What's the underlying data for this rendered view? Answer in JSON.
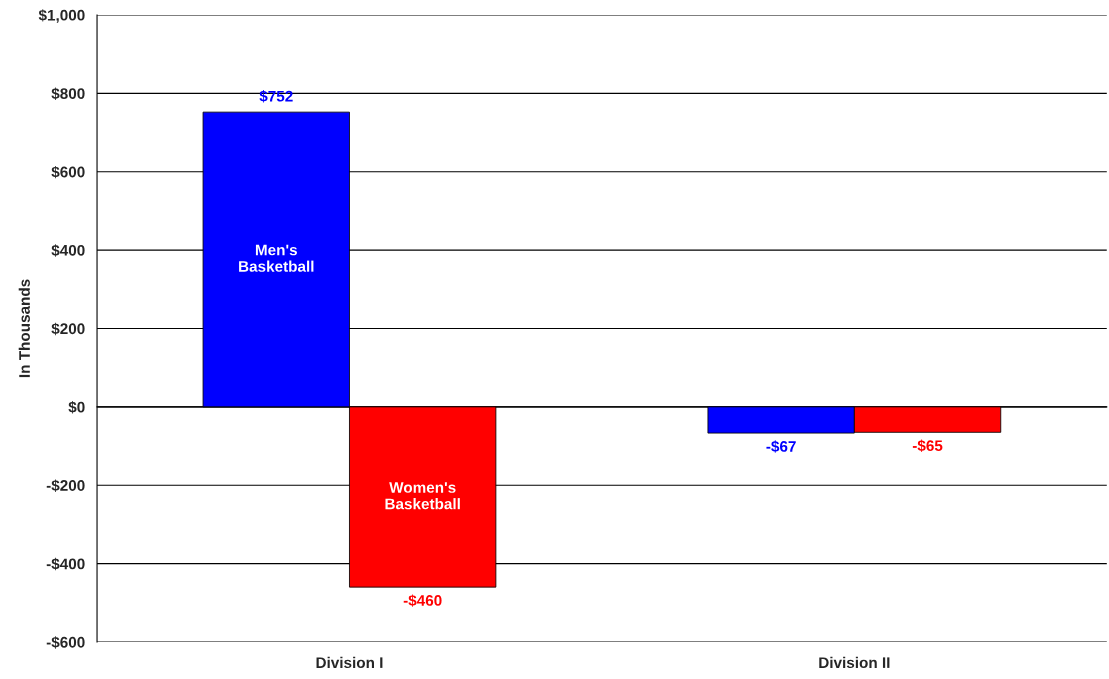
{
  "chart_data": {
    "type": "bar",
    "ylabel": "In Thousands",
    "categories": [
      "Division I",
      "Division II"
    ],
    "series": [
      {
        "name": "Men's Basketball",
        "color": "#0000ff",
        "values": [
          752,
          -67
        ],
        "value_labels": [
          "$752",
          "-$67"
        ]
      },
      {
        "name": "Women's Basketball",
        "color": "#ff0000",
        "values": [
          -460,
          -65
        ],
        "value_labels": [
          "-$460",
          "-$65"
        ]
      }
    ],
    "ylim": [
      -600,
      1000
    ],
    "yticks": [
      {
        "value": -600,
        "label": "-$600"
      },
      {
        "value": -400,
        "label": "-$400"
      },
      {
        "value": -200,
        "label": "-$200"
      },
      {
        "value": 0,
        "label": "$0"
      },
      {
        "value": 200,
        "label": "$200"
      },
      {
        "value": 400,
        "label": "$400"
      },
      {
        "value": 600,
        "label": "$600"
      },
      {
        "value": 800,
        "label": "$800"
      },
      {
        "value": 1000,
        "label": "$1,000"
      }
    ],
    "grid": "y",
    "legend": false
  }
}
